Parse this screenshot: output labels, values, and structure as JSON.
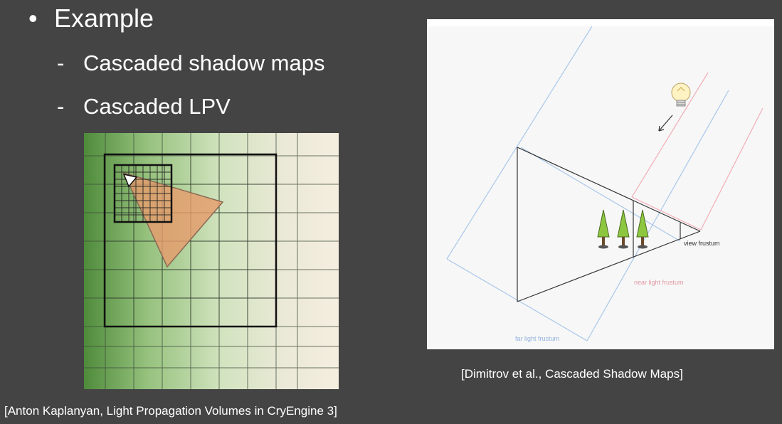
{
  "bullet": {
    "symbol": "•",
    "text": "Example"
  },
  "sub_items": [
    {
      "symbol": "-",
      "text": "Cascaded shadow maps"
    },
    {
      "symbol": "-",
      "text": "Cascaded LPV"
    }
  ],
  "left_figure": {
    "caption": "[Anton Kaplanyan, Light Propagation Volumes in CryEngine 3]"
  },
  "right_figure": {
    "caption": "[Dimitrov et al., Cascaded Shadow Maps]",
    "labels": {
      "view": "view frustum",
      "near": "near light frustum",
      "far": "far light frustum"
    }
  }
}
